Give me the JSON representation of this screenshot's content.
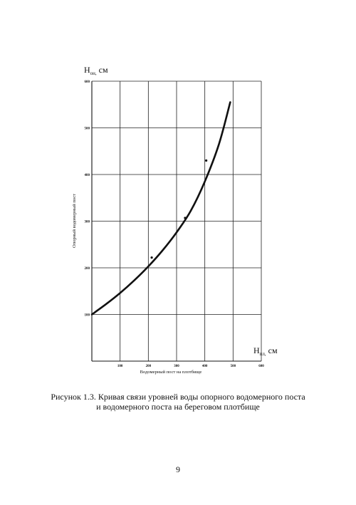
{
  "chart_data": {
    "type": "line",
    "x_axis": {
      "symbol": "H",
      "subscript": "пл,",
      "unit": "см",
      "label": "Водомерный пост на плотбище",
      "range": [
        0,
        600
      ],
      "ticks": [
        "",
        "100",
        "200",
        "300",
        "400",
        "500",
        "600"
      ]
    },
    "y_axis": {
      "symbol": "H",
      "subscript": "он,",
      "unit": "см",
      "label": "Опорный водомерный пост",
      "range": [
        0,
        600
      ],
      "ticks": [
        "",
        "100",
        "200",
        "300",
        "400",
        "500",
        "600"
      ]
    },
    "grid": true,
    "series": [
      {
        "style": "curve",
        "x": [
          0,
          50,
          100,
          150,
          200,
          250,
          300,
          350,
          400,
          450,
          490
        ],
        "y": [
          100,
          122,
          146,
          173,
          203,
          237,
          276,
          322,
          385,
          465,
          555
        ]
      },
      {
        "style": "points",
        "x": [
          212,
          330,
          405
        ],
        "y": [
          222,
          307,
          430
        ]
      }
    ]
  },
  "caption": {
    "line1": "Рисунок 1.3. Кривая связи уровней воды опорного водомерного поста",
    "line2": "и водомерного поста на береговом плотбище"
  },
  "page_number": "9"
}
